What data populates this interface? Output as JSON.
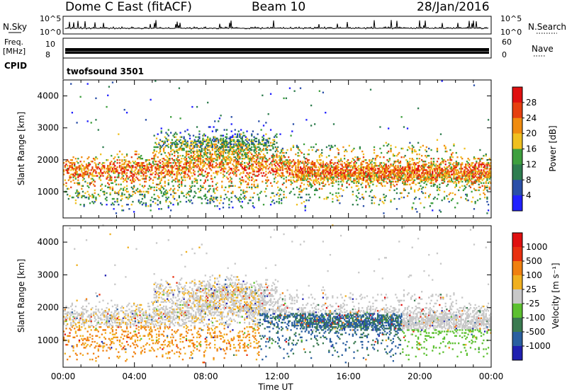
{
  "header": {
    "title": "Dome C East (fitACF)",
    "beam": "Beam 10",
    "date": "28/Jan/2016"
  },
  "noise_panel": {
    "left_label": "N.Sky",
    "right_label": "N.Search",
    "ticks": [
      "10^5",
      "10^0"
    ]
  },
  "freq_panel": {
    "left_label_1": "Freq.",
    "left_label_2": "[MHz]",
    "left_ticks": [
      "10",
      "8"
    ],
    "right_label": "Nave",
    "right_ticks": [
      "60",
      "0"
    ]
  },
  "cpid": {
    "label": "CPID",
    "value": "twofsound 3501"
  },
  "chart_data": [
    {
      "type": "heatmap",
      "name": "power",
      "ylabel": "Slant Range [km]",
      "xlabel": "",
      "yticks": [
        1000,
        2000,
        3000,
        4000
      ],
      "ylim": [
        180,
        4500
      ],
      "xlim_hours": [
        0,
        24
      ],
      "colorbar_label": "Power [dB]",
      "colorbar_ticks": [
        "28",
        "24",
        "20",
        "16",
        "12",
        "8",
        "4"
      ],
      "colors": [
        "#2121ff",
        "#2a4fa8",
        "#2e7d4f",
        "#3e9f3e",
        "#f0c020",
        "#f08c10",
        "#e64010",
        "#e01010"
      ]
    },
    {
      "type": "heatmap",
      "name": "velocity",
      "ylabel": "Slant Range [km]",
      "xlabel": "Time UT",
      "yticks": [
        1000,
        2000,
        3000,
        4000
      ],
      "ylim": [
        180,
        4500
      ],
      "xlim_hours": [
        0,
        24
      ],
      "xtick_labels": [
        "00:00",
        "04:00",
        "08:00",
        "12:00",
        "16:00",
        "20:00",
        "00:00"
      ],
      "colorbar_label": "Velocity [m s⁻¹]",
      "colorbar_ticks": [
        "1000",
        "500",
        "100",
        "25",
        "-25",
        "-100",
        "-500",
        "-1000"
      ],
      "colors": [
        "#2020b0",
        "#2a5fa0",
        "#3a7a50",
        "#5cc030",
        "#c8c8c8",
        "#f0b020",
        "#f08010",
        "#e83010",
        "#e01010"
      ]
    }
  ]
}
